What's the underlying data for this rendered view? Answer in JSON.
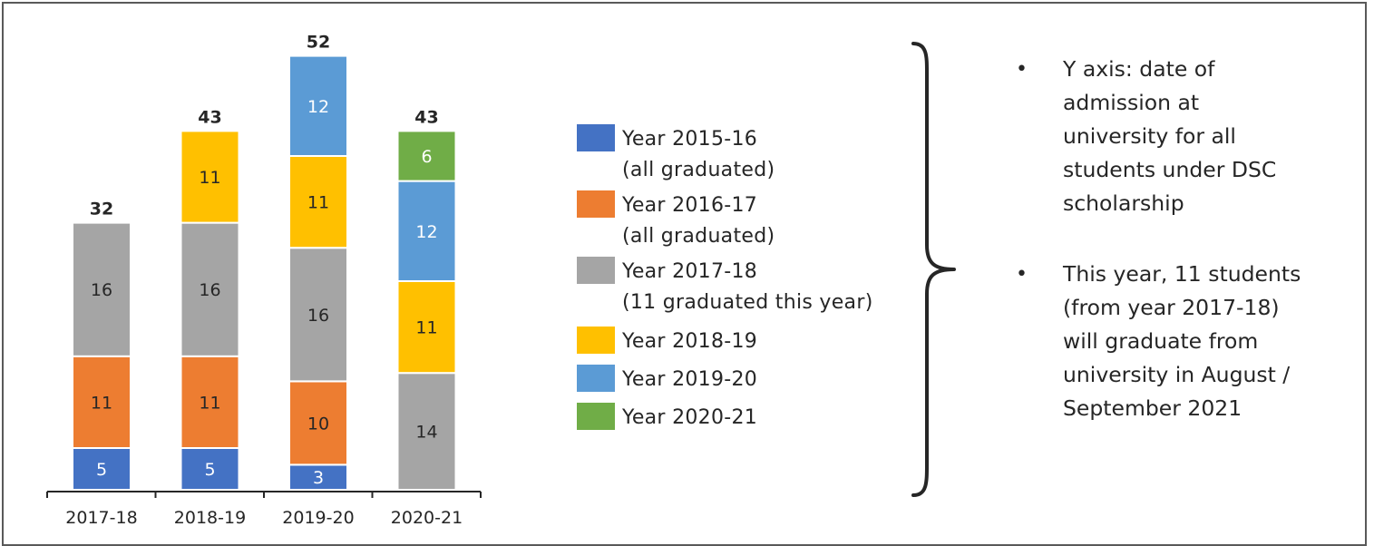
{
  "chart_data": {
    "type": "bar",
    "stacked": true,
    "categories": [
      "2017-18",
      "2018-19",
      "2019-20",
      "2020-21"
    ],
    "series": [
      {
        "name": "Year 2015-16 (all graduated)",
        "color": "#4472c4",
        "values": [
          5,
          5,
          3,
          0
        ]
      },
      {
        "name": "Year 2016-17 (all graduated)",
        "color": "#ed7d31",
        "values": [
          11,
          11,
          10,
          0
        ]
      },
      {
        "name": "Year 2017-18 (11 graduated this year)",
        "color": "#a5a5a5",
        "values": [
          16,
          16,
          16,
          14
        ]
      },
      {
        "name": "Year 2018-19",
        "color": "#ffc000",
        "values": [
          0,
          11,
          11,
          11
        ]
      },
      {
        "name": "Year 2019-20",
        "color": "#5b9bd5",
        "values": [
          0,
          0,
          12,
          12
        ]
      },
      {
        "name": "Year 2020-21",
        "color": "#70ad47",
        "values": [
          0,
          0,
          0,
          6
        ]
      }
    ],
    "totals": [
      32,
      43,
      52,
      43
    ],
    "label_colors": {
      "on_light": "#262626",
      "on_dark": "#ffffff"
    },
    "legend": [
      {
        "line1": "Year 2015-16",
        "line2": "(all graduated)",
        "color": "#4472c4"
      },
      {
        "line1": "Year 2016-17",
        "line2": "(all graduated)",
        "color": "#ed7d31"
      },
      {
        "line1": "Year 2017-18",
        "line2": "(11 graduated this year)",
        "color": "#a5a5a5"
      },
      {
        "line1": "Year 2018-19",
        "line2": "",
        "color": "#ffc000"
      },
      {
        "line1": "Year 2019-20",
        "line2": "",
        "color": "#5b9bd5"
      },
      {
        "line1": "Year 2020-21",
        "line2": "",
        "color": "#70ad47"
      }
    ],
    "legend_position": "right",
    "grid": false,
    "xlabel": "",
    "ylabel": ""
  },
  "notes": [
    "Y axis: date of admission at university for all students under DSC scholarship",
    "This year, 11 students (from year 2017-18) will graduate from university in August / September 2021"
  ],
  "colors": {
    "frame": "#595959",
    "axis": "#262626",
    "brace": "#262626"
  }
}
